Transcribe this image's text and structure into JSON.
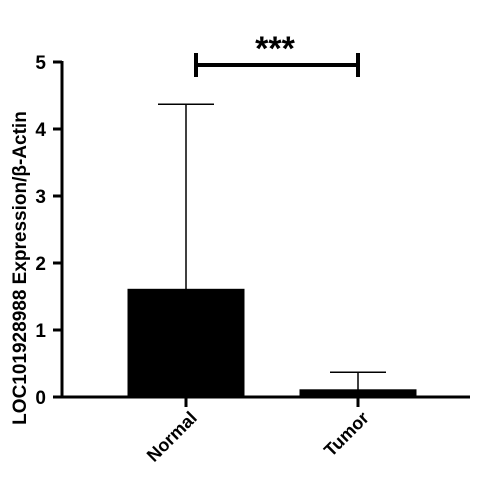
{
  "chart_data": {
    "type": "bar",
    "title": "",
    "ylabel": "LOC101928988 Expression/β-Actin",
    "xlabel": "",
    "categories": [
      "Normal",
      "Tumor"
    ],
    "values": [
      1.6,
      0.1
    ],
    "error_upper": [
      4.37,
      0.37
    ],
    "ylim": [
      0,
      5
    ],
    "yticks": [
      "0",
      "1",
      "2",
      "3",
      "4",
      "5"
    ],
    "grid": false,
    "bar_color": "#000000",
    "significance": {
      "label": "***",
      "between": [
        "Normal",
        "Tumor"
      ]
    }
  }
}
